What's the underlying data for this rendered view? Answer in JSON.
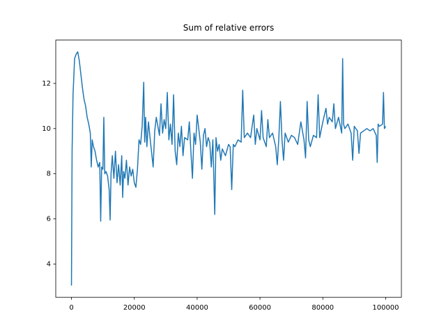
{
  "chart_data": {
    "type": "line",
    "title": "Sum of relative errors",
    "color": "#1f77b4",
    "xlim": [
      -5000,
      105000
    ],
    "ylim": [
      2.53,
      13.92
    ],
    "xticks": [
      0,
      20000,
      40000,
      60000,
      80000,
      100000
    ],
    "yticks": [
      4,
      6,
      8,
      10,
      12
    ],
    "x": [
      0,
      200,
      500,
      1000,
      1500,
      2000,
      2500,
      3000,
      3500,
      4000,
      4500,
      5000,
      5500,
      6000,
      6300,
      6600,
      7000,
      7500,
      8000,
      8500,
      9000,
      9300,
      9600,
      10000,
      10300,
      10600,
      11000,
      11500,
      12000,
      12300,
      12600,
      13000,
      13500,
      14000,
      14500,
      15000,
      15500,
      16000,
      16300,
      16600,
      17000,
      17500,
      18000,
      18500,
      19000,
      19500,
      20000,
      20500,
      21000,
      21500,
      22000,
      22500,
      23000,
      23300,
      23600,
      24000,
      24500,
      25000,
      26000,
      26500,
      27000,
      28000,
      28500,
      29000,
      29500,
      30000,
      30500,
      31000,
      31500,
      32000,
      32500,
      33000,
      33500,
      34000,
      34500,
      35000,
      35500,
      36000,
      37000,
      37500,
      38000,
      38500,
      39000,
      39500,
      40000,
      41000,
      41500,
      42000,
      42500,
      43000,
      43500,
      44000,
      44500,
      45000,
      45600,
      46000,
      46500,
      47000,
      47500,
      48000,
      49000,
      50000,
      50500,
      51000,
      51500,
      52000,
      53000,
      54000,
      54500,
      55000,
      56000,
      57000,
      58000,
      58500,
      59000,
      60000,
      60500,
      61000,
      62000,
      62500,
      63000,
      64000,
      65000,
      65500,
      66000,
      66500,
      67000,
      67500,
      68000,
      69000,
      70000,
      71000,
      72000,
      73000,
      74000,
      74500,
      75000,
      75500,
      76000,
      77000,
      78000,
      78500,
      79000,
      80000,
      81000,
      81500,
      82000,
      83000,
      83500,
      84000,
      85000,
      86000,
      86300,
      86600,
      87000,
      88000,
      89000,
      89500,
      90000,
      91000,
      91500,
      92000,
      93000,
      94000,
      95000,
      96000,
      97000,
      97300,
      97600,
      98000,
      99000,
      99300,
      99600,
      100000
    ],
    "values": [
      3.05,
      9,
      11.5,
      13.1,
      13.3,
      13.4,
      13.0,
      12.4,
      11.8,
      11.3,
      11.0,
      10.5,
      10.2,
      9.8,
      8.3,
      9.5,
      9.2,
      9.0,
      8.6,
      8.3,
      8.5,
      5.9,
      8.3,
      8.2,
      10.5,
      8.0,
      8.1,
      7.9,
      7.3,
      5.95,
      8.0,
      8.8,
      7.8,
      9.0,
      7.6,
      8.4,
      7.5,
      8.8,
      6.95,
      8.1,
      7.8,
      8.6,
      7.5,
      8.3,
      7.9,
      8.2,
      7.6,
      7.4,
      8.2,
      9.5,
      9.3,
      10.1,
      12.05,
      9.4,
      10.5,
      9.2,
      10.3,
      9.6,
      8.3,
      9.9,
      10.5,
      9.7,
      11.1,
      9.8,
      10.4,
      10.0,
      11.6,
      9.5,
      10.2,
      9.3,
      11.5,
      9.0,
      8.4,
      9.8,
      9.2,
      10.1,
      8.8,
      9.6,
      9.5,
      10.3,
      9.0,
      7.8,
      9.8,
      9.3,
      10.6,
      9.4,
      8.2,
      9.7,
      10.0,
      9.2,
      9.6,
      9.4,
      8.3,
      9.5,
      6.2,
      9.6,
      9.0,
      9.3,
      8.6,
      9.1,
      8.8,
      9.3,
      9.2,
      7.3,
      9.3,
      9.2,
      9.5,
      9.4,
      11.7,
      9.6,
      9.8,
      9.6,
      10.6,
      9.3,
      10.0,
      9.5,
      10.8,
      9.6,
      9.2,
      10.4,
      9.6,
      9.8,
      9.2,
      8.4,
      9.6,
      11.2,
      9.5,
      8.6,
      9.8,
      9.4,
      9.7,
      9.6,
      9.3,
      10.3,
      9.5,
      8.7,
      11.2,
      9.5,
      9.2,
      9.7,
      9.6,
      11.5,
      9.6,
      10.3,
      10.9,
      10.2,
      10.5,
      10.3,
      11.1,
      10.0,
      10.5,
      9.8,
      13.1,
      10.2,
      10.0,
      10.2,
      9.8,
      8.6,
      10.1,
      9.9,
      8.9,
      9.8,
      9.9,
      10.0,
      9.9,
      10.0,
      9.7,
      8.5,
      10.2,
      10.1,
      10.2,
      11.6,
      10.0,
      10.1
    ]
  }
}
